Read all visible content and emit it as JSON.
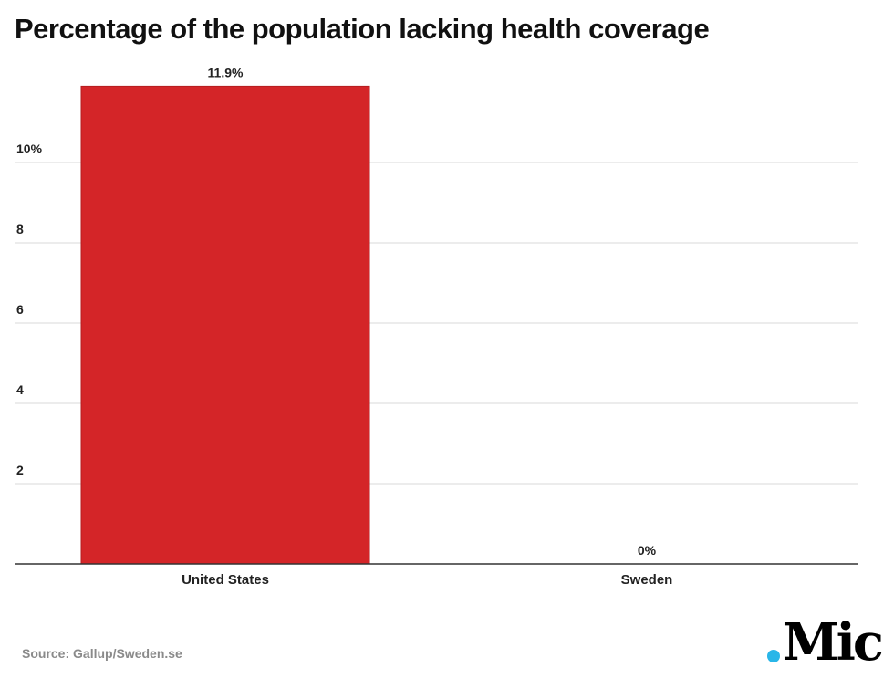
{
  "chart_data": {
    "type": "bar",
    "title": "Percentage of the population lacking health coverage",
    "categories": [
      "United States",
      "Sweden"
    ],
    "values": [
      11.9,
      0
    ],
    "data_labels": [
      "11.9%",
      "0%"
    ],
    "xlabel": "",
    "ylabel": "",
    "ylim": [
      0,
      12
    ],
    "yticks": [
      2,
      4,
      6,
      8,
      10
    ],
    "ytick_labels": [
      "2",
      "4",
      "6",
      "8",
      "10%"
    ],
    "grid": true,
    "bar_color": "#d42528",
    "source": "Source: Gallup/Sweden.se"
  },
  "brand": {
    "logo_text": "Mic",
    "logo_dot_color": "#29b6e8"
  }
}
